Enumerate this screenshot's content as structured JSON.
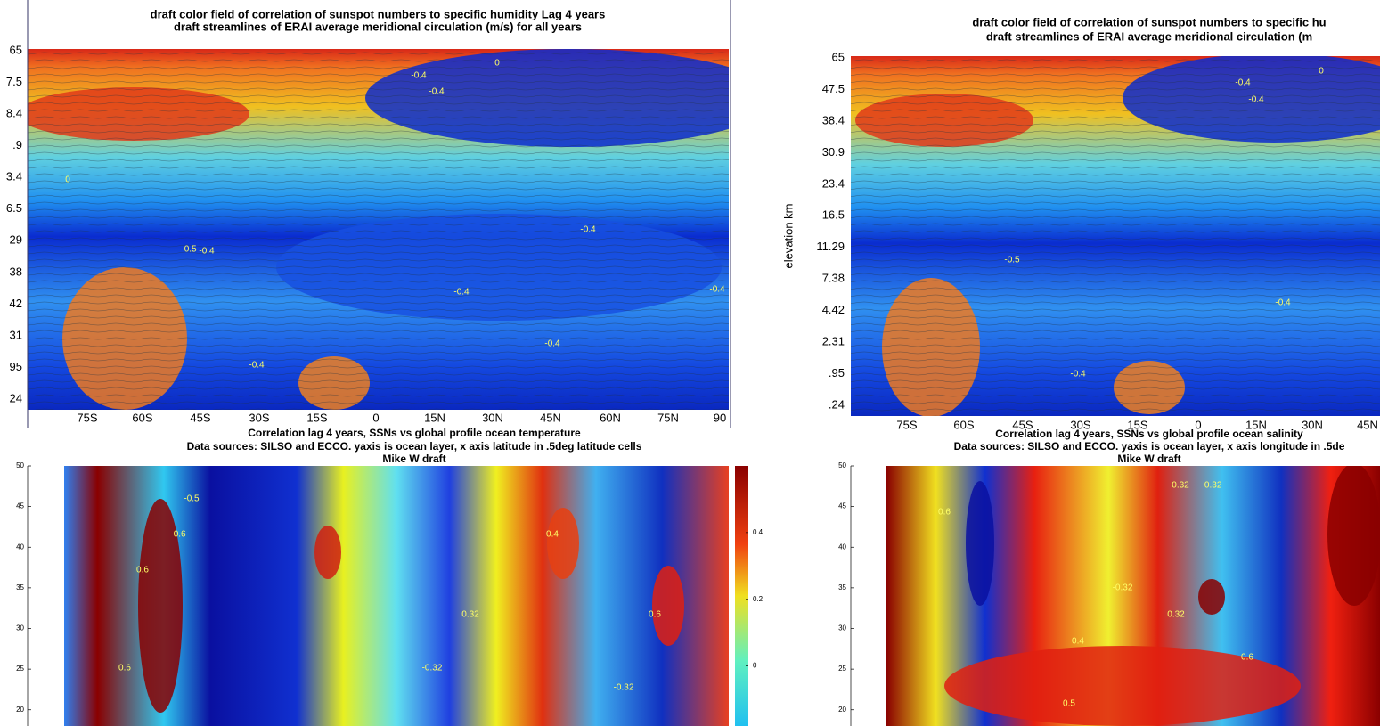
{
  "chart_data": [
    {
      "type": "heatmap",
      "title": [
        "draft color field of correlation of sunspot numbers to specific humidity Lag 4 years",
        "draft streamlines of ERAI average meridional circulation (m/s) for all years"
      ],
      "y_labels": [
        "65",
        "7.5",
        "8.4",
        ".9",
        "3.4",
        "6.5",
        "29",
        "38",
        "42",
        "31",
        "95",
        "24"
      ],
      "x_labels": [
        "75S",
        "60S",
        "45S",
        "30S",
        "15S",
        "0",
        "15N",
        "30N",
        "45N",
        "60N",
        "75N",
        "90"
      ],
      "annotations": [
        "-0.4",
        "-0.4",
        "-0.4",
        "-0.5",
        "-0.4",
        "-0.4",
        "-0.4",
        "-0.4",
        "-0.4",
        "0",
        "0"
      ]
    },
    {
      "type": "heatmap",
      "title": [
        "draft color field of correlation of sunspot numbers to specific hu",
        "draft streamlines of ERAI average meridional circulation (m"
      ],
      "y_label": "elevation km",
      "y_labels": [
        "65",
        "47.5",
        "38.4",
        "30.9",
        "23.4",
        "16.5",
        "11.29",
        "7.38",
        "4.42",
        "2.31",
        ".95",
        ".24"
      ],
      "x_labels": [
        "75S",
        "60S",
        "45S",
        "30S",
        "15S",
        "0",
        "15N",
        "30N",
        "45N"
      ],
      "annotations": [
        "-0.4",
        "-0.4",
        "-0.5",
        "-0.4",
        "-0.4",
        "0"
      ]
    },
    {
      "type": "heatmap",
      "title": [
        "Correlation lag 4 years, SSNs vs global profile ocean temperature",
        "Data sources: SILSO and ECCO. yaxis is ocean layer, x axis latitude in .5deg latitude cells",
        "Mike W draft"
      ],
      "ylim": [
        18,
        50
      ],
      "yticks": [
        50,
        45,
        40,
        35,
        30,
        25,
        20
      ],
      "colorbar_lim": [
        -0.18,
        0.6
      ],
      "colorbar_ticks": [
        0.4,
        0.2,
        0
      ],
      "annotations": [
        "-0.6",
        "0.6",
        "-0.5",
        "0.6",
        "-0.32",
        "0.4",
        "0.32",
        "-0.32",
        "0.6"
      ]
    },
    {
      "type": "heatmap",
      "title": [
        "Correlation lag 4 years, SSNs vs global profile ocean salinity",
        "Data sources: SILSO and ECCO. yaxis is ocean layer, x axis longitude in .5de",
        "Mike W draft"
      ],
      "ylim": [
        18,
        50
      ],
      "yticks": [
        50,
        45,
        40,
        35,
        30,
        25,
        20
      ],
      "annotations": [
        "0.32",
        "-0.32",
        "0.6",
        "0.4",
        "0.5",
        "-0.32",
        "0.6",
        "0.32"
      ]
    }
  ]
}
